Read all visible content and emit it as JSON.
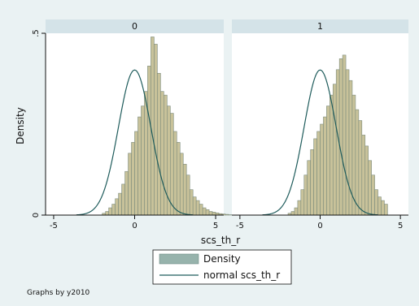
{
  "chart_data": {
    "type": "histogram",
    "ylabel": "Density",
    "xlabel": "scs_th_r",
    "xlim": [
      -5.5,
      5.5
    ],
    "ylim": [
      0,
      0.5
    ],
    "xticks": [
      -5,
      0,
      5
    ],
    "yticks": [
      {
        "value": 0,
        "label": "0"
      },
      {
        "value": 0.5,
        "label": ".5"
      }
    ],
    "bin_width": 0.2,
    "bin_start": -3.0,
    "normal_curve": {
      "mean": 0,
      "sd": 1
    },
    "colors": {
      "bar_fill": "#c8c29a",
      "bar_stroke": "#7d8c7c",
      "curve": "#1f5c5c",
      "strip": "#d4e3e8",
      "background": "#eaf2f3"
    },
    "panels": [
      {
        "title": "0",
        "densities": [
          0,
          0,
          0,
          0,
          0,
          0.005,
          0.01,
          0.02,
          0.03,
          0.045,
          0.06,
          0.085,
          0.12,
          0.17,
          0.2,
          0.23,
          0.27,
          0.3,
          0.34,
          0.41,
          0.49,
          0.47,
          0.39,
          0.34,
          0.33,
          0.3,
          0.28,
          0.23,
          0.2,
          0.17,
          0.14,
          0.11,
          0.07,
          0.05,
          0.04,
          0.03,
          0.02,
          0.015,
          0.01,
          0.008,
          0.006,
          0.004,
          0.003,
          0.002,
          0.001
        ]
      },
      {
        "title": "1",
        "densities": [
          0,
          0,
          0,
          0,
          0,
          0.005,
          0.01,
          0.02,
          0.04,
          0.07,
          0.11,
          0.15,
          0.18,
          0.21,
          0.23,
          0.25,
          0.27,
          0.3,
          0.33,
          0.36,
          0.4,
          0.43,
          0.44,
          0.4,
          0.37,
          0.33,
          0.29,
          0.26,
          0.22,
          0.19,
          0.15,
          0.11,
          0.07,
          0.05,
          0.04,
          0.03,
          0,
          0,
          0,
          0,
          0,
          0,
          0,
          0,
          0
        ]
      }
    ],
    "legend": {
      "placement": "bottom-center",
      "items": [
        {
          "label": "Density",
          "kind": "bar"
        },
        {
          "label": "normal scs_th_r",
          "kind": "line"
        }
      ]
    },
    "note": "Graphs by y2010"
  }
}
